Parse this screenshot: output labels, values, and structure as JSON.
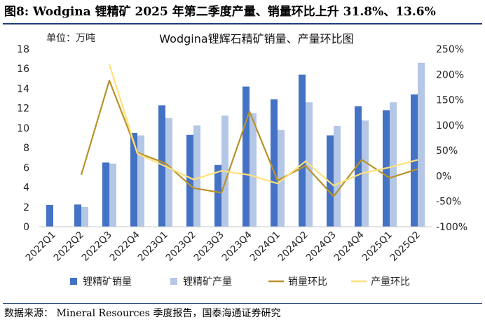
{
  "figure_title": "图8:  Wodgina 锂精矿 2025 年第二季度产量、销量环比上升 31.8%、13.6%",
  "source_note": "数据来源：  Mineral Resources 季度报告，国泰海通证券研究",
  "colors": {
    "sales_bar": "#4472c4",
    "production_bar": "#b4c7e7",
    "sales_qoq_line": "#b8922a",
    "production_qoq_line": "#ffe07a",
    "rule": "#1d3c78"
  },
  "chart_data": {
    "type": "bar",
    "title": "Wodgina锂辉石精矿销量、产量环比图",
    "unit_label": "单位：万吨",
    "categories": [
      "2022Q1",
      "2022Q2",
      "2022Q3",
      "2022Q4",
      "2023Q1",
      "2023Q2",
      "2023Q3",
      "2023Q4",
      "2024Q1",
      "2024Q2",
      "2024Q3",
      "2024Q4",
      "2025Q1",
      "2025Q2"
    ],
    "series": [
      {
        "name": "锂精矿销量",
        "kind": "bar",
        "axis": "left",
        "values": [
          2.2,
          2.25,
          6.5,
          9.5,
          12.3,
          9.3,
          6.25,
          14.2,
          12.9,
          15.4,
          9.25,
          12.2,
          11.8,
          13.4
        ]
      },
      {
        "name": "锂精矿产量",
        "kind": "bar",
        "axis": "left",
        "values": [
          null,
          2.0,
          6.4,
          9.25,
          11.0,
          10.25,
          11.25,
          11.5,
          9.8,
          12.6,
          10.2,
          10.75,
          12.6,
          16.6
        ]
      },
      {
        "name": "销量环比",
        "kind": "line",
        "axis": "right",
        "values": [
          null,
          2.3,
          188,
          46,
          25,
          -24,
          -33,
          127,
          -9,
          20,
          -40,
          32,
          -4,
          13.6
        ]
      },
      {
        "name": "产量环比",
        "kind": "line",
        "axis": "right",
        "values": [
          null,
          null,
          220,
          44,
          19,
          -7,
          10,
          2,
          -15,
          29,
          -19,
          5,
          17,
          31.8
        ]
      }
    ],
    "left_axis": {
      "min": 0,
      "max": 18,
      "step": 2,
      "ticks": [
        "0",
        "2",
        "4",
        "6",
        "8",
        "10",
        "12",
        "14",
        "16",
        "18"
      ]
    },
    "right_axis": {
      "min": -100,
      "max": 250,
      "step": 50,
      "ticks": [
        "-100%",
        "-50%",
        "0%",
        "50%",
        "100%",
        "150%",
        "200%",
        "250%"
      ]
    },
    "grid": false,
    "legend_position": "bottom"
  }
}
